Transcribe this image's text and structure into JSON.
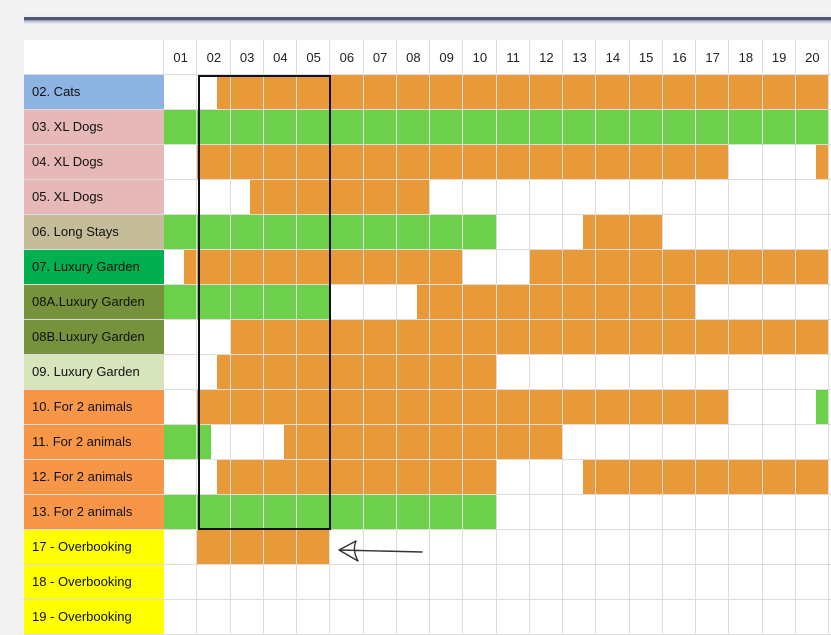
{
  "calendar": {
    "days": [
      "01",
      "02",
      "03",
      "04",
      "05",
      "06",
      "07",
      "08",
      "09",
      "10",
      "11",
      "12",
      "13",
      "14",
      "15",
      "16",
      "17",
      "18",
      "19",
      "20"
    ]
  },
  "colors": {
    "booked": "#e8993a",
    "available": "#6dd04a",
    "selection_border": "#111111",
    "grid_line": "#dddddd"
  },
  "rooms": [
    {
      "label": "02. Cats",
      "color": "#8db3e2",
      "bars": [
        {
          "type": "booked",
          "start": 2.6,
          "end": 21
        }
      ]
    },
    {
      "label": "03. XL Dogs",
      "color": "#e6b9b8",
      "bars": [
        {
          "type": "available",
          "start": 1,
          "end": 21
        }
      ]
    },
    {
      "label": "04. XL Dogs",
      "color": "#e6b9b8",
      "bars": [
        {
          "type": "booked",
          "start": 2,
          "end": 18
        },
        {
          "type": "booked",
          "start": 20.6,
          "end": 21
        }
      ]
    },
    {
      "label": "05. XL Dogs",
      "color": "#e6b9b8",
      "bars": [
        {
          "type": "booked",
          "start": 3.6,
          "end": 9
        }
      ]
    },
    {
      "label": "06. Long Stays",
      "color": "#c4bd97",
      "bars": [
        {
          "type": "available",
          "start": 1,
          "end": 11
        },
        {
          "type": "booked",
          "start": 13.6,
          "end": 16
        }
      ]
    },
    {
      "label": "07. Luxury Garden",
      "color": "#00b050",
      "bars": [
        {
          "type": "booked",
          "start": 1.6,
          "end": 10
        },
        {
          "type": "booked",
          "start": 12,
          "end": 21
        }
      ]
    },
    {
      "label": "08A.Luxury Garden",
      "color": "#76923c",
      "bars": [
        {
          "type": "available",
          "start": 1,
          "end": 6
        },
        {
          "type": "booked",
          "start": 8.6,
          "end": 17
        }
      ]
    },
    {
      "label": "08B.Luxury Garden",
      "color": "#76923c",
      "bars": [
        {
          "type": "booked",
          "start": 3,
          "end": 21
        }
      ]
    },
    {
      "label": "09. Luxury Garden",
      "color": "#d8e4bc",
      "bars": [
        {
          "type": "booked",
          "start": 2.6,
          "end": 11
        }
      ]
    },
    {
      "label": "10. For 2 animals",
      "color": "#f79646",
      "bars": [
        {
          "type": "booked",
          "start": 2,
          "end": 18
        },
        {
          "type": "available",
          "start": 20.6,
          "end": 21
        }
      ]
    },
    {
      "label": "11. For 2 animals",
      "color": "#f79646",
      "bars": [
        {
          "type": "available",
          "start": 1,
          "end": 2.4
        },
        {
          "type": "booked",
          "start": 4.6,
          "end": 13
        }
      ]
    },
    {
      "label": "12. For 2 animals",
      "color": "#f79646",
      "bars": [
        {
          "type": "booked",
          "start": 2.6,
          "end": 11
        },
        {
          "type": "booked",
          "start": 13.6,
          "end": 21
        }
      ]
    },
    {
      "label": "13. For 2 animals",
      "color": "#f79646",
      "bars": [
        {
          "type": "available",
          "start": 1,
          "end": 11
        }
      ]
    },
    {
      "label": "17 - Overbooking",
      "color": "#ffff00",
      "bars": [
        {
          "type": "booked",
          "start": 2,
          "end": 6
        }
      ]
    },
    {
      "label": "18 - Overbooking",
      "color": "#ffff00",
      "bars": []
    },
    {
      "label": "19 - Overbooking",
      "color": "#ffff00",
      "bars": []
    }
  ],
  "selection": {
    "start_day": "02",
    "end_day": "05",
    "first_room": "02. Cats",
    "last_room": "13. For 2 animals"
  },
  "annotation": {
    "icon": "hand-drawn-arrow-icon",
    "points_to": "17 - Overbooking"
  }
}
